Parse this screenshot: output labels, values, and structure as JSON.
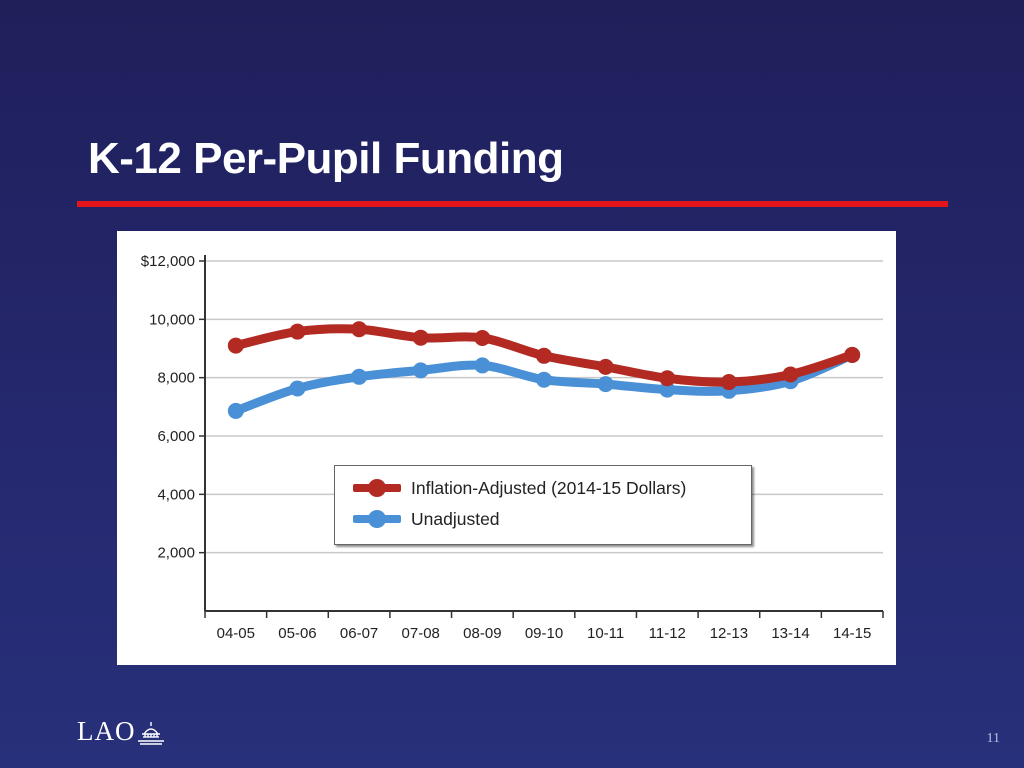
{
  "slide": {
    "title": "K-12 Per-Pupil Funding",
    "page_number": "11",
    "logo_text": "LAO"
  },
  "colors": {
    "background": "#22245f",
    "title_rule": "#e4141b",
    "inflation_adjusted": "#b22a22",
    "unadjusted": "#4a90d6"
  },
  "icons": {
    "logo": "capitol-dome-icon"
  },
  "chart_data": {
    "type": "line",
    "categories": [
      "04-05",
      "05-06",
      "06-07",
      "07-08",
      "08-09",
      "09-10",
      "10-11",
      "11-12",
      "12-13",
      "13-14",
      "14-15"
    ],
    "series": [
      {
        "name": "Inflation-Adjusted (2014-15 Dollars)",
        "color": "#b22a22",
        "values": [
          9100,
          9580,
          9660,
          9370,
          9360,
          8750,
          8370,
          7980,
          7850,
          8110,
          8780
        ]
      },
      {
        "name": "Unadjusted",
        "color": "#4a90d6",
        "values": [
          6860,
          7630,
          8030,
          8250,
          8420,
          7930,
          7780,
          7590,
          7550,
          7880,
          8780
        ]
      }
    ],
    "y_ticks": [
      "$12,000",
      "10,000",
      "8,000",
      "6,000",
      "4,000",
      "2,000"
    ],
    "y_tick_values": [
      12000,
      10000,
      8000,
      6000,
      4000,
      2000
    ],
    "ylim": [
      0,
      12000
    ],
    "grid": true,
    "legend_position": "center"
  }
}
